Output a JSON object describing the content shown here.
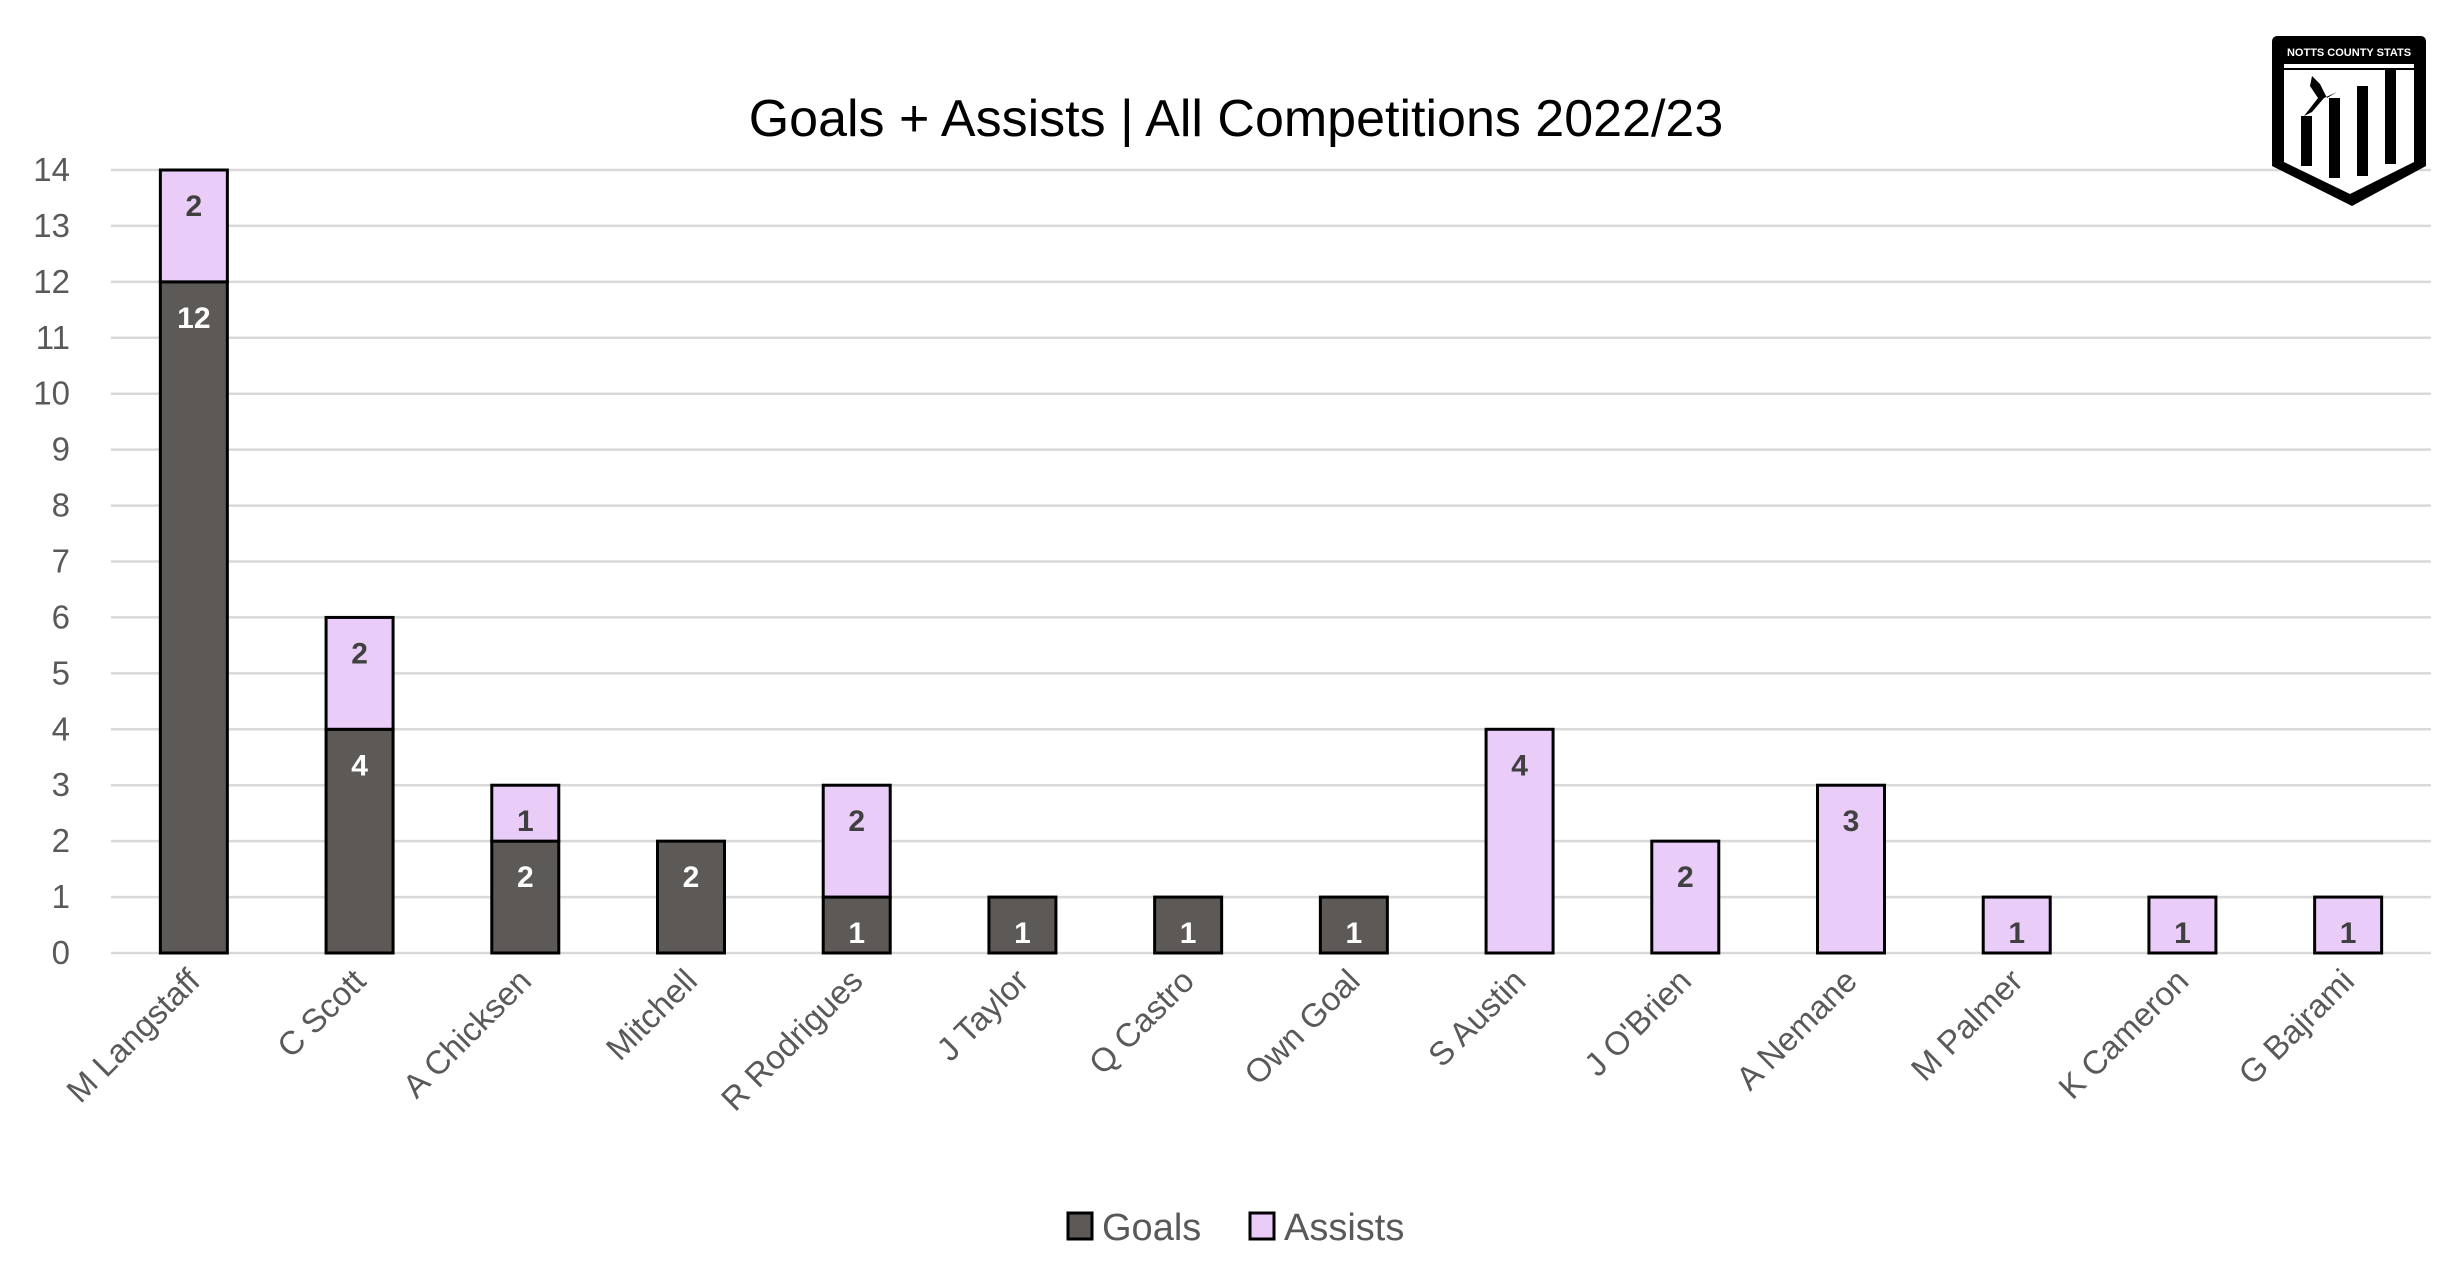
{
  "chart_data": {
    "type": "bar",
    "stacked": true,
    "title": "Goals + Assists | All Competitions 2022/23",
    "xlabel": "",
    "ylabel": "",
    "ylim": [
      0,
      14
    ],
    "yticks": [
      0,
      1,
      2,
      3,
      4,
      5,
      6,
      7,
      8,
      9,
      10,
      11,
      12,
      13,
      14
    ],
    "grid": true,
    "legend": "bottom",
    "categories": [
      "M Langstaff",
      "C Scott",
      "A Chicksen",
      "Mitchell",
      "R Rodrigues",
      "J Taylor",
      "Q Castro",
      "Own Goal",
      "S Austin",
      "J O'Brien",
      "A Nemane",
      "M Palmer",
      "K Cameron",
      "G Bajrami"
    ],
    "series": [
      {
        "name": "Goals",
        "color": "#5d5957",
        "label_color": "#ffffff",
        "values": [
          12,
          4,
          2,
          2,
          1,
          1,
          1,
          1,
          0,
          0,
          0,
          0,
          0,
          0
        ]
      },
      {
        "name": "Assists",
        "color": "#e9ccf8",
        "label_color": "#404040",
        "values": [
          2,
          2,
          1,
          0,
          2,
          0,
          0,
          0,
          4,
          2,
          3,
          1,
          1,
          1
        ]
      }
    ]
  },
  "logo": {
    "text": "NOTTS COUNTY STATS",
    "icon": "shield-bird-bars-logo"
  }
}
